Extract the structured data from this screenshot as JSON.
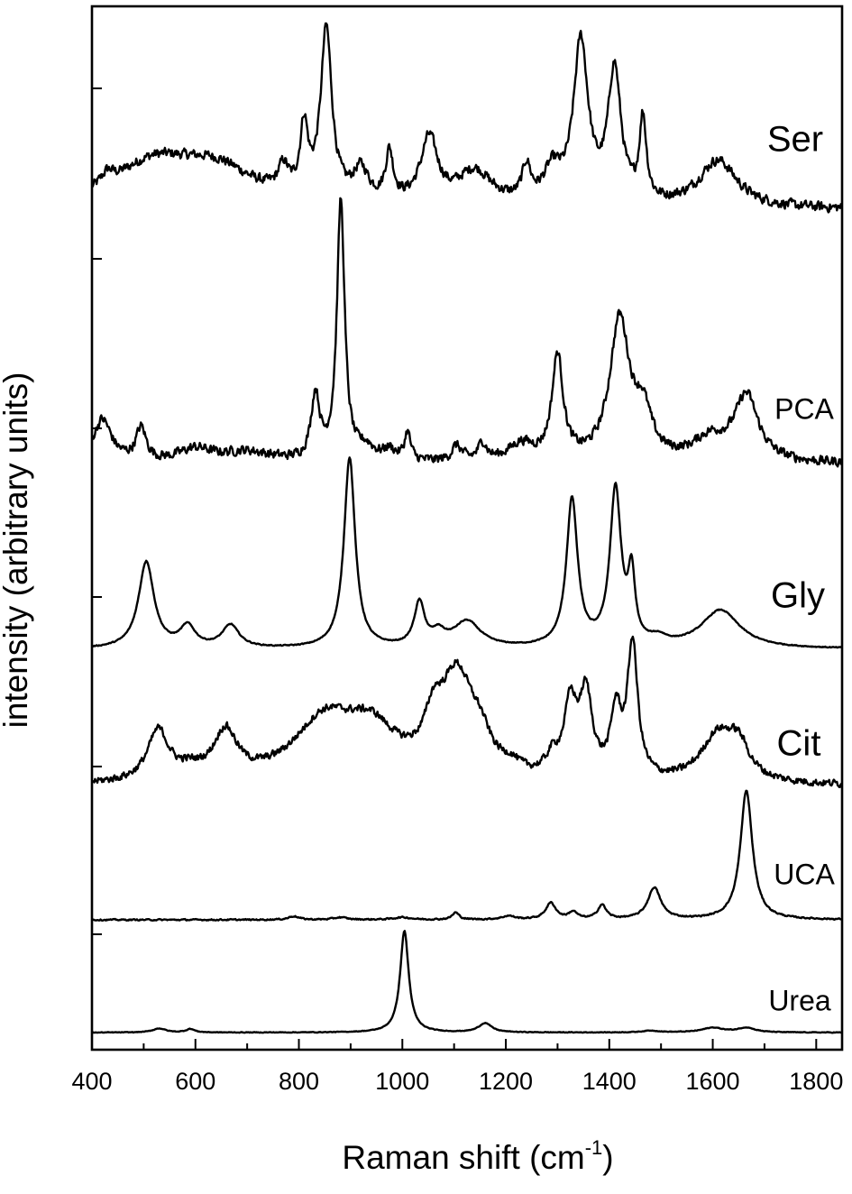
{
  "chart_data": {
    "type": "line",
    "xlabel_main": "Raman shift (cm",
    "xlabel_sup": "-1",
    "xlabel_close": ")",
    "ylabel": "intensity (arbitrary units)",
    "xlim": [
      400,
      1850
    ],
    "xticks": [
      400,
      600,
      800,
      1000,
      1200,
      1400,
      1600,
      1800
    ],
    "xtick_labels": [
      "400",
      "600",
      "800",
      "1000",
      "1200",
      "1400",
      "1600",
      "1800"
    ],
    "series": [
      {
        "name": "Ser",
        "baseline": 0.0,
        "noise": 0.04,
        "peaks": [
          [
            430,
            0.07,
            15
          ],
          [
            520,
            0.25,
            100
          ],
          [
            640,
            0.2,
            90
          ],
          [
            770,
            0.15,
            12
          ],
          [
            810,
            0.4,
            9
          ],
          [
            853,
            1.0,
            13
          ],
          [
            920,
            0.18,
            18
          ],
          [
            975,
            0.28,
            9
          ],
          [
            1052,
            0.38,
            20
          ],
          [
            1140,
            0.2,
            40
          ],
          [
            1240,
            0.2,
            10
          ],
          [
            1290,
            0.18,
            20
          ],
          [
            1345,
            0.95,
            17
          ],
          [
            1410,
            0.78,
            15
          ],
          [
            1465,
            0.48,
            8
          ],
          [
            1610,
            0.28,
            45
          ]
        ]
      },
      {
        "name": "PCA",
        "baseline": 0.0,
        "noise": 0.03,
        "peaks": [
          [
            420,
            0.2,
            22
          ],
          [
            495,
            0.15,
            12
          ],
          [
            600,
            0.06,
            40
          ],
          [
            700,
            0.05,
            60
          ],
          [
            832,
            0.3,
            10
          ],
          [
            881,
            1.2,
            9
          ],
          [
            930,
            0.06,
            20
          ],
          [
            975,
            0.05,
            15
          ],
          [
            1010,
            0.13,
            7
          ],
          [
            1105,
            0.07,
            12
          ],
          [
            1155,
            0.08,
            10
          ],
          [
            1230,
            0.08,
            30
          ],
          [
            1300,
            0.48,
            13
          ],
          [
            1420,
            0.65,
            23
          ],
          [
            1465,
            0.2,
            20
          ],
          [
            1595,
            0.1,
            40
          ],
          [
            1665,
            0.3,
            28
          ]
        ]
      },
      {
        "name": "Gly",
        "baseline": 0.0,
        "noise": 0.004,
        "peaks": [
          [
            505,
            0.5,
            18
          ],
          [
            585,
            0.12,
            18
          ],
          [
            668,
            0.13,
            20
          ],
          [
            898,
            1.1,
            13
          ],
          [
            1033,
            0.25,
            12
          ],
          [
            1070,
            0.07,
            15
          ],
          [
            1125,
            0.15,
            32
          ],
          [
            1328,
            0.85,
            13
          ],
          [
            1412,
            0.9,
            13
          ],
          [
            1443,
            0.38,
            8
          ],
          [
            1495,
            0.04,
            20
          ],
          [
            1615,
            0.22,
            45
          ]
        ]
      },
      {
        "name": "Cit",
        "baseline": 0.0,
        "noise": 0.03,
        "peaks": [
          [
            528,
            0.3,
            25
          ],
          [
            590,
            0.05,
            30
          ],
          [
            658,
            0.28,
            28
          ],
          [
            850,
            0.36,
            75
          ],
          [
            940,
            0.26,
            60
          ],
          [
            1060,
            0.22,
            20
          ],
          [
            1105,
            0.6,
            40
          ],
          [
            1150,
            0.15,
            25
          ],
          [
            1210,
            0.05,
            20
          ],
          [
            1290,
            0.1,
            15
          ],
          [
            1325,
            0.42,
            15
          ],
          [
            1355,
            0.48,
            15
          ],
          [
            1413,
            0.38,
            12
          ],
          [
            1445,
            0.8,
            12
          ],
          [
            1610,
            0.28,
            40
          ],
          [
            1650,
            0.18,
            25
          ]
        ]
      },
      {
        "name": "UCA",
        "baseline": 0.0,
        "noise": 0.008,
        "peaks": [
          [
            790,
            0.03,
            12
          ],
          [
            880,
            0.02,
            15
          ],
          [
            1000,
            0.02,
            20
          ],
          [
            1103,
            0.06,
            8
          ],
          [
            1205,
            0.03,
            15
          ],
          [
            1287,
            0.14,
            12
          ],
          [
            1330,
            0.06,
            10
          ],
          [
            1386,
            0.12,
            10
          ],
          [
            1487,
            0.27,
            15
          ],
          [
            1665,
            1.1,
            14
          ]
        ]
      },
      {
        "name": "Urea",
        "baseline": 0.0,
        "noise": 0.004,
        "peaks": [
          [
            530,
            0.035,
            15
          ],
          [
            590,
            0.03,
            10
          ],
          [
            1004,
            0.88,
            10
          ],
          [
            1160,
            0.08,
            15
          ],
          [
            1480,
            0.015,
            20
          ],
          [
            1600,
            0.04,
            25
          ],
          [
            1665,
            0.04,
            20
          ]
        ]
      }
    ]
  }
}
